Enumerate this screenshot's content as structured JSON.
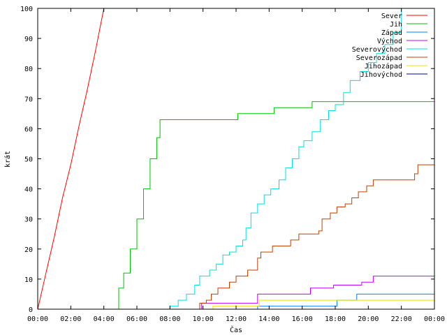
{
  "chart_data": {
    "type": "line",
    "xlabel": "Čas",
    "ylabel": "krát",
    "xlim": [
      0,
      24
    ],
    "ylim": [
      0,
      100
    ],
    "x_ticks": [
      "00:00",
      "02:00",
      "04:00",
      "06:00",
      "08:00",
      "10:00",
      "12:00",
      "14:00",
      "16:00",
      "18:00",
      "20:00",
      "22:00",
      "00:00"
    ],
    "y_ticks": [
      "0",
      "10",
      "20",
      "30",
      "40",
      "50",
      "60",
      "70",
      "80",
      "90",
      "100"
    ],
    "x_tick_values": [
      0,
      2,
      4,
      6,
      8,
      10,
      12,
      14,
      16,
      18,
      20,
      22,
      24
    ],
    "y_tick_values": [
      0,
      10,
      20,
      30,
      40,
      50,
      60,
      70,
      80,
      90,
      100
    ],
    "legend_position": "top-right",
    "series": [
      {
        "name": "Sever",
        "color": "#ff0000",
        "step": false,
        "points": [
          [
            0,
            0
          ],
          [
            0.5,
            12
          ],
          [
            1,
            24
          ],
          [
            1.5,
            37
          ],
          [
            2,
            48
          ],
          [
            2.5,
            61
          ],
          [
            3,
            73
          ],
          [
            3.5,
            86
          ],
          [
            4,
            100
          ]
        ]
      },
      {
        "name": "Jih",
        "color": "#00c000",
        "step": true,
        "points": [
          [
            4.7,
            0
          ],
          [
            4.9,
            7
          ],
          [
            5.2,
            12
          ],
          [
            5.6,
            20
          ],
          [
            6,
            30
          ],
          [
            6.4,
            40
          ],
          [
            6.8,
            50
          ],
          [
            7.2,
            57
          ],
          [
            7.4,
            63
          ],
          [
            12,
            63
          ],
          [
            12.1,
            65
          ],
          [
            14.2,
            65
          ],
          [
            14.3,
            67
          ],
          [
            16.5,
            67
          ],
          [
            16.6,
            69
          ],
          [
            24,
            69
          ]
        ]
      },
      {
        "name": "Západ",
        "color": "#0080ff",
        "step": true,
        "points": [
          [
            12.8,
            0
          ],
          [
            13.2,
            0
          ],
          [
            13.3,
            1
          ],
          [
            18,
            1
          ],
          [
            18.1,
            3
          ],
          [
            19.2,
            3
          ],
          [
            19.3,
            5
          ],
          [
            24,
            5
          ]
        ]
      },
      {
        "name": "Východ",
        "color": "#c000ff",
        "step": true,
        "points": [
          [
            9.8,
            0
          ],
          [
            9.9,
            2
          ],
          [
            13.2,
            2
          ],
          [
            13.3,
            5
          ],
          [
            16.4,
            5
          ],
          [
            16.5,
            7
          ],
          [
            17.8,
            7
          ],
          [
            17.9,
            8
          ],
          [
            19.5,
            8
          ],
          [
            19.6,
            9
          ],
          [
            20.2,
            9
          ],
          [
            20.3,
            11
          ],
          [
            24,
            11
          ]
        ]
      },
      {
        "name": "Severovýchod",
        "color": "#00e0e0",
        "step": true,
        "points": [
          [
            7.9,
            0
          ],
          [
            8,
            1
          ],
          [
            8.5,
            3
          ],
          [
            9,
            5
          ],
          [
            9.5,
            8
          ],
          [
            9.8,
            11
          ],
          [
            10.4,
            13
          ],
          [
            10.8,
            15
          ],
          [
            11.2,
            18
          ],
          [
            11.6,
            19
          ],
          [
            12,
            21
          ],
          [
            12.4,
            23
          ],
          [
            12.6,
            27
          ],
          [
            12.9,
            32
          ],
          [
            13.3,
            35
          ],
          [
            13.7,
            38
          ],
          [
            14.1,
            40
          ],
          [
            14.6,
            43
          ],
          [
            15,
            47
          ],
          [
            15.4,
            50
          ],
          [
            15.8,
            54
          ],
          [
            16.1,
            56
          ],
          [
            16.6,
            59
          ],
          [
            17.1,
            63
          ],
          [
            17.6,
            66
          ],
          [
            18,
            68
          ],
          [
            18.5,
            72
          ],
          [
            18.9,
            76
          ],
          [
            19.5,
            79
          ],
          [
            20,
            82
          ],
          [
            20.5,
            85
          ],
          [
            21,
            88
          ],
          [
            21.5,
            92
          ],
          [
            22,
            100
          ]
        ]
      },
      {
        "name": "Severozápad",
        "color": "#c04000",
        "step": true,
        "points": [
          [
            9.6,
            0
          ],
          [
            9.8,
            2
          ],
          [
            10.2,
            3
          ],
          [
            10.5,
            5
          ],
          [
            10.9,
            7
          ],
          [
            11.6,
            9
          ],
          [
            12,
            11
          ],
          [
            12.7,
            13
          ],
          [
            13.3,
            17
          ],
          [
            13.5,
            19
          ],
          [
            14.2,
            21
          ],
          [
            15.3,
            23
          ],
          [
            15.8,
            25
          ],
          [
            17,
            26
          ],
          [
            17.2,
            30
          ],
          [
            17.7,
            32
          ],
          [
            18.1,
            34
          ],
          [
            18.6,
            35
          ],
          [
            19,
            37
          ],
          [
            19.4,
            39
          ],
          [
            19.9,
            41
          ],
          [
            20.3,
            43
          ],
          [
            22.7,
            43
          ],
          [
            22.8,
            45
          ],
          [
            23,
            48
          ],
          [
            24,
            48
          ]
        ]
      },
      {
        "name": "Jihozápad",
        "color": "#f0e000",
        "step": true,
        "points": [
          [
            10.5,
            0
          ],
          [
            10.6,
            1
          ],
          [
            13.3,
            1
          ],
          [
            13.4,
            3
          ],
          [
            24,
            3
          ]
        ]
      },
      {
        "name": "Jihovýchod",
        "color": "#0000a0",
        "step": true,
        "points": [
          [
            0,
            0
          ],
          [
            24,
            0
          ]
        ]
      }
    ]
  }
}
